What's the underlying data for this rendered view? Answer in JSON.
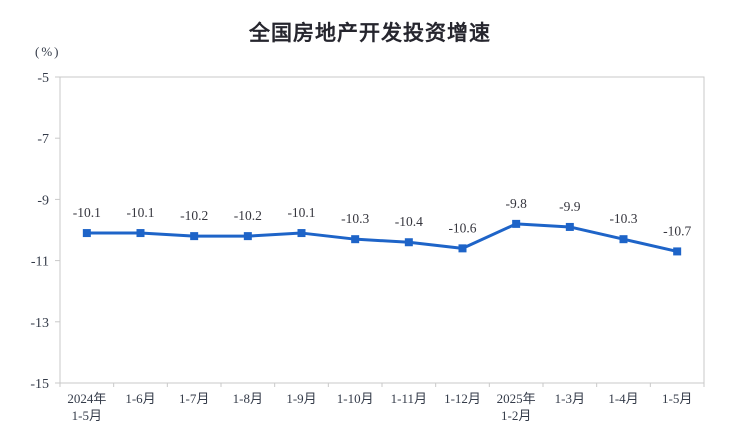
{
  "chart_data": {
    "type": "line",
    "title": "全国房地产开发投资增速",
    "y_unit_label": "(%)",
    "categories": [
      [
        "2024年",
        "1-5月"
      ],
      [
        "1-6月"
      ],
      [
        "1-7月"
      ],
      [
        "1-8月"
      ],
      [
        "1-9月"
      ],
      [
        "1-10月"
      ],
      [
        "1-11月"
      ],
      [
        "1-12月"
      ],
      [
        "2025年",
        "1-2月"
      ],
      [
        "1-3月"
      ],
      [
        "1-4月"
      ],
      [
        "1-5月"
      ]
    ],
    "values": [
      -10.1,
      -10.1,
      -10.2,
      -10.2,
      -10.1,
      -10.3,
      -10.4,
      -10.6,
      -9.8,
      -9.9,
      -10.3,
      -10.7
    ],
    "data_labels": [
      "-10.1",
      "-10.1",
      "-10.2",
      "-10.2",
      "-10.1",
      "-10.3",
      "-10.4",
      "-10.6",
      "-9.8",
      "-9.9",
      "-10.3",
      "-10.7"
    ],
    "ylim": [
      -15,
      -5
    ],
    "y_ticks": [
      -5,
      -7,
      -9,
      -11,
      -13,
      -15
    ],
    "grid": false,
    "legend": "none",
    "line_color": "#1e64c8",
    "marker": "square",
    "axis_color": "#c9c9c9",
    "tick_text_color": "#343b49",
    "data_label_color": "#36363e",
    "title_color": "#26262e",
    "background": "#ffffff"
  }
}
